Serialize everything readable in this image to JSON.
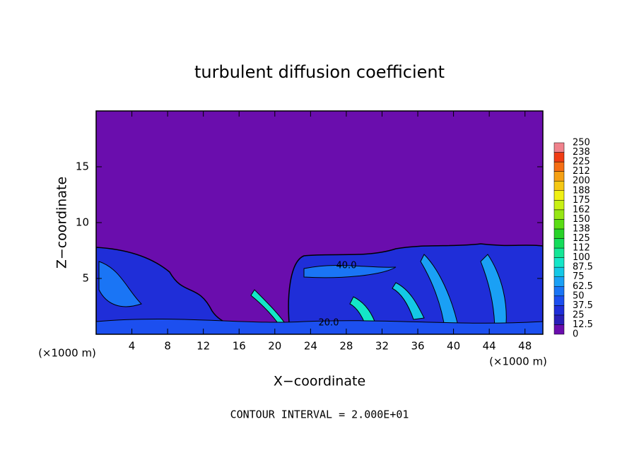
{
  "chart_data": {
    "type": "contour",
    "title": "turbulent diffusion coefficient",
    "xlabel": "X−coordinate",
    "ylabel": "Z−coordinate",
    "x_unit_left": "(×1000 m)",
    "x_unit_right": "(×1000 m)",
    "footnote": "CONTOUR INTERVAL = 2.000E+01",
    "xlim": [
      0,
      50
    ],
    "ylim": [
      0,
      20
    ],
    "xticks": [
      4,
      8,
      12,
      16,
      20,
      24,
      28,
      32,
      36,
      40,
      44,
      48
    ],
    "yticks": [
      5,
      10,
      15
    ],
    "annotations": [
      "40.0",
      "20.0"
    ],
    "colorbar": {
      "levels": [
        0,
        12.5,
        25,
        37.5,
        50,
        62.5,
        75,
        87.5,
        100,
        112,
        125,
        138,
        150,
        162,
        175,
        188,
        200,
        212,
        225,
        238,
        250
      ],
      "colors": [
        "#6a0dad",
        "#2a1fb8",
        "#1f2ed8",
        "#1c4fef",
        "#1a75f5",
        "#1aa0f5",
        "#14c8e6",
        "#14e6c8",
        "#14e696",
        "#14dc5a",
        "#28d228",
        "#5adc14",
        "#96e614",
        "#c8f014",
        "#f0f014",
        "#f5c814",
        "#f5a014",
        "#f56e14",
        "#f03c14",
        "#f0828c"
      ]
    }
  }
}
